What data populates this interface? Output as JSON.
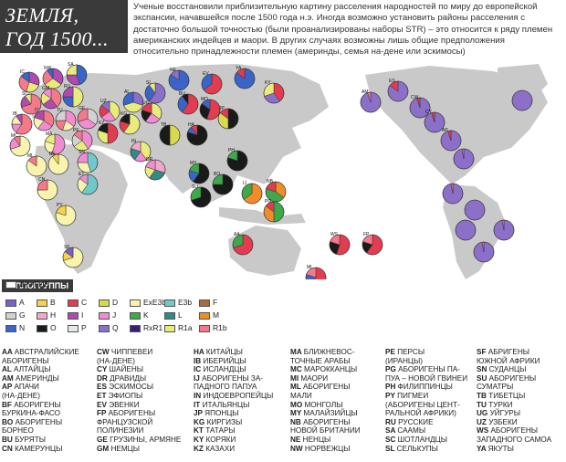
{
  "title": {
    "line1": "ЗЕМЛЯ,",
    "line2": "ГОД 1500..."
  },
  "intro": "Ученые восстановили приблизительную картину расселения народностей по миру до европейской экспансии, начавшейся после 1500 года н.э. Иногда возможно установить районы расселения с достаточно большой точностью (были проанализированы наборы STR) – это относится к ряду племен американских индейцев и маори. В других случаях возможны лишь общие предположения относительно принадлежности племен (америнды, семья на-дене или эскимосы)",
  "colors": {
    "land": "#c9c9c9",
    "ocean": "#ffffff",
    "A": "#7a5fc4",
    "B": "#f6d24a",
    "C": "#e33b4f",
    "D": "#d7d94e",
    "ExE3b": "#f8f4ae",
    "E3b": "#70c8c8",
    "F": "#a86b3a",
    "G": "#d2d2d2",
    "H": "#f0a8c8",
    "I": "#b04ab0",
    "J": "#f18cd2",
    "K": "#3fa848",
    "L": "#2f8a8a",
    "N": "#3a64c8",
    "O": "#1a1a1a",
    "P": "#e8e8e8",
    "Q": "#8b6fc8",
    "RxR1": "#3a1f7a",
    "M": "#f08c2a",
    "R1a": "#e8ec7a",
    "R1b": "#f47a8a",
    "other": "#ffffff"
  },
  "legend": {
    "title": "ГАПЛОГРУППЫ",
    "items": [
      {
        "code": "A",
        "color": "#7a5fc4"
      },
      {
        "code": "B",
        "color": "#f6d24a"
      },
      {
        "code": "C",
        "color": "#e33b4f"
      },
      {
        "code": "D",
        "color": "#d7d94e"
      },
      {
        "code": "ExE3b",
        "color": "#f8f4ae"
      },
      {
        "code": "E3b",
        "color": "#70c8c8"
      },
      {
        "code": "F",
        "color": "#a86b3a"
      },
      {
        "code": "G",
        "color": "#d2d2d2"
      },
      {
        "code": "H",
        "color": "#f0a8c8"
      },
      {
        "code": "I",
        "color": "#b04ab0"
      },
      {
        "code": "J",
        "color": "#f18cd2"
      },
      {
        "code": "K",
        "color": "#3fa848"
      },
      {
        "code": "L",
        "color": "#2f8a8a"
      },
      {
        "code": "M",
        "color": "#f08c2a"
      },
      {
        "code": "N",
        "color": "#3a64c8"
      },
      {
        "code": "O",
        "color": "#1a1a1a"
      },
      {
        "code": "P",
        "color": "#e8e8e8"
      },
      {
        "code": "Q",
        "color": "#8b6fc8"
      },
      {
        "code": "RxR1",
        "color": "#3a1f7a"
      },
      {
        "code": "R1a",
        "color": "#e8ec7a"
      },
      {
        "code": "R1b",
        "color": "#f47a8a"
      },
      {
        "code": "ДРУГИЕ",
        "color": "#ffffff"
      }
    ]
  },
  "groups": [
    [
      {
        "code": "AA",
        "name": "АВСТРАЛИЙСКИЕ"
      },
      {
        "code": "",
        "name": "АБОРИГЕНЫ"
      },
      {
        "code": "AL",
        "name": "АЛТАЙЦЫ"
      },
      {
        "code": "AM",
        "name": "АМЕРИНДЫ"
      },
      {
        "code": "AP",
        "name": "АПАЧИ"
      },
      {
        "code": "",
        "name": "(НА-ДЕНЕ)"
      },
      {
        "code": "BF",
        "name": "АБОРИГЕНЫ"
      },
      {
        "code": "",
        "name": "БУРКИНА-ФАСО"
      },
      {
        "code": "BO",
        "name": "АБОРИГЕНЫ"
      },
      {
        "code": "",
        "name": "БОРНЕО"
      },
      {
        "code": "BU",
        "name": "БУРЯТЫ"
      },
      {
        "code": "CN",
        "name": "КАМЕРУНЦЫ"
      }
    ],
    [
      {
        "code": "CW",
        "name": "ЧИППЕВЕИ"
      },
      {
        "code": "",
        "name": "(НА-ДЕНЕ)"
      },
      {
        "code": "CY",
        "name": "ШАЙЕНЫ"
      },
      {
        "code": "DR",
        "name": "ДРАВИДЫ"
      },
      {
        "code": "ES",
        "name": "ЭСКИМОСЫ"
      },
      {
        "code": "ET",
        "name": "ЭФИОПЫ"
      },
      {
        "code": "EV",
        "name": "ЭВЕНКИ"
      },
      {
        "code": "FP",
        "name": "АБОРИГЕНЫ"
      },
      {
        "code": "",
        "name": "ФРАНЦУЗСКОЙ"
      },
      {
        "code": "",
        "name": "ПОЛИНЕЗИИ"
      },
      {
        "code": "GE",
        "name": "ГРУЗИНЫ, АРМЯНЕ"
      },
      {
        "code": "GM",
        "name": "НЕМЦЫ"
      }
    ],
    [
      {
        "code": "HA",
        "name": "КИТАЙЦЫ"
      },
      {
        "code": "IB",
        "name": "ИБЕРИЙЦЫ"
      },
      {
        "code": "IC",
        "name": "ИСЛАНДЦЫ"
      },
      {
        "code": "IJ",
        "name": "АБОРИГЕНЫ ЗА-"
      },
      {
        "code": "",
        "name": "ПАДНОГО ПАПУА"
      },
      {
        "code": "IN",
        "name": "ИНДОЕВРОПЕЙЦЫ"
      },
      {
        "code": "IT",
        "name": "ИТАЛЬЯНЦЫ"
      },
      {
        "code": "JP",
        "name": "ЯПОНЦЫ"
      },
      {
        "code": "KG",
        "name": "КИРГИЗЫ"
      },
      {
        "code": "KT",
        "name": "ТАТАРЫ"
      },
      {
        "code": "KY",
        "name": "КОРЯКИ"
      },
      {
        "code": "KZ",
        "name": "КАЗАХИ"
      }
    ],
    [
      {
        "code": "MA",
        "name": "БЛИЖНЕВОС-"
      },
      {
        "code": "",
        "name": "ТОЧНЫЕ АРАБЫ"
      },
      {
        "code": "MC",
        "name": "МАРОККАНЦЫ"
      },
      {
        "code": "MI",
        "name": "МАОРИ"
      },
      {
        "code": "ML",
        "name": "АБОРИГЕНЫ"
      },
      {
        "code": "",
        "name": "МАЛИ"
      },
      {
        "code": "MO",
        "name": "МОНГОЛЫ"
      },
      {
        "code": "MY",
        "name": "МАЛАЙЗИЙЦЫ"
      },
      {
        "code": "NB",
        "name": "АБОРИГЕНЫ"
      },
      {
        "code": "",
        "name": "НОВОЙ БРИТАНИИ"
      },
      {
        "code": "NE",
        "name": "НЕНЦЫ"
      },
      {
        "code": "NW",
        "name": "НОРВЕЖЦЫ"
      }
    ],
    [
      {
        "code": "PE",
        "name": "ПЕРСЫ"
      },
      {
        "code": "",
        "name": "(ИРАНЦЫ)"
      },
      {
        "code": "PG",
        "name": "АБОРИГЕНЫ ПА-"
      },
      {
        "code": "",
        "name": "ПУА – НОВОЙ ГВИНЕИ"
      },
      {
        "code": "PH",
        "name": "ФИЛИППИНЦЫ"
      },
      {
        "code": "PY",
        "name": "ПИГМЕИ"
      },
      {
        "code": "",
        "name": "(АБОРИГЕНЫ ЦЕНТ-"
      },
      {
        "code": "",
        "name": "РАЛЬНОЙ АФРИКИ)"
      },
      {
        "code": "RU",
        "name": "РУССКИЕ"
      },
      {
        "code": "SA",
        "name": "СААМЫ"
      },
      {
        "code": "SC",
        "name": "ШОТЛАНДЦЫ"
      },
      {
        "code": "SL",
        "name": "СЕЛЬКУПЫ"
      }
    ],
    [
      {
        "code": "SF",
        "name": "АБРИГЕНЫ"
      },
      {
        "code": "",
        "name": "ЮЖНОЙ АФРИКИ"
      },
      {
        "code": "SN",
        "name": "СУДАНЦЫ"
      },
      {
        "code": "SU",
        "name": "АБОРИГЕНЫ"
      },
      {
        "code": "",
        "name": "СУМАТРЫ"
      },
      {
        "code": "TB",
        "name": "ТИБЕТЦЫ"
      },
      {
        "code": "TU",
        "name": "ТУРКИ"
      },
      {
        "code": "UG",
        "name": "УЙГУРЫ"
      },
      {
        "code": "UZ",
        "name": "УЗБЕКИ"
      },
      {
        "code": "WS",
        "name": "АБОРИГЕНЫ"
      },
      {
        "code": "",
        "name": "ЗАПАДНОГО САМОА"
      },
      {
        "code": "YA",
        "name": "ЯКУТЫ"
      }
    ]
  ],
  "pies": [
    {
      "label": "IC",
      "s": [
        [
          "I",
          30
        ],
        [
          "R1a",
          25
        ],
        [
          "R1b",
          30
        ],
        [
          "N",
          15
        ]
      ]
    },
    {
      "label": "NW",
      "s": [
        [
          "I",
          35
        ],
        [
          "R1a",
          30
        ],
        [
          "R1b",
          25
        ],
        [
          "N",
          10
        ]
      ]
    },
    {
      "label": "SA",
      "s": [
        [
          "N",
          45
        ],
        [
          "I",
          30
        ],
        [
          "R1a",
          25
        ]
      ]
    },
    {
      "label": "SC",
      "s": [
        [
          "R1b",
          70
        ],
        [
          "I",
          20
        ],
        [
          "R1a",
          10
        ]
      ]
    },
    {
      "label": "GM",
      "s": [
        [
          "R1b",
          40
        ],
        [
          "I",
          25
        ],
        [
          "R1a",
          20
        ],
        [
          "J",
          15
        ]
      ]
    },
    {
      "label": "RU",
      "s": [
        [
          "R1a",
          50
        ],
        [
          "N",
          25
        ],
        [
          "I",
          25
        ]
      ]
    },
    {
      "label": "IB",
      "s": [
        [
          "R1b",
          60
        ],
        [
          "J",
          15
        ],
        [
          "ExE3b",
          15
        ],
        [
          "I",
          10
        ]
      ]
    },
    {
      "label": "IT",
      "s": [
        [
          "R1b",
          35
        ],
        [
          "J",
          25
        ],
        [
          "ExE3b",
          20
        ],
        [
          "I",
          20
        ]
      ]
    },
    {
      "label": "TU",
      "s": [
        [
          "J",
          35
        ],
        [
          "ExE3b",
          20
        ],
        [
          "R1b",
          20
        ],
        [
          "G",
          25
        ]
      ]
    },
    {
      "label": "GE",
      "s": [
        [
          "G",
          35
        ],
        [
          "J",
          35
        ],
        [
          "R1b",
          30
        ]
      ]
    },
    {
      "label": "MC",
      "s": [
        [
          "ExE3b",
          70
        ],
        [
          "J",
          20
        ],
        [
          "R1b",
          10
        ]
      ]
    },
    {
      "label": "MA",
      "s": [
        [
          "J",
          55
        ],
        [
          "ExE3b",
          25
        ],
        [
          "R1a",
          20
        ]
      ]
    },
    {
      "label": "PE",
      "s": [
        [
          "J",
          40
        ],
        [
          "R1a",
          25
        ],
        [
          "G",
          20
        ],
        [
          "R1b",
          15
        ]
      ]
    },
    {
      "label": "KZ",
      "s": [
        [
          "C",
          50
        ],
        [
          "R1a",
          30
        ],
        [
          "O",
          20
        ]
      ]
    },
    {
      "label": "UZ",
      "s": [
        [
          "R1a",
          40
        ],
        [
          "J",
          25
        ],
        [
          "C",
          20
        ],
        [
          "Q",
          15
        ]
      ]
    },
    {
      "label": "KG",
      "s": [
        [
          "R1a",
          60
        ],
        [
          "C",
          20
        ],
        [
          "O",
          20
        ]
      ]
    },
    {
      "label": "AL",
      "s": [
        [
          "Q",
          30
        ],
        [
          "R1a",
          40
        ],
        [
          "N",
          30
        ]
      ]
    },
    {
      "label": "SL",
      "s": [
        [
          "Q",
          60
        ],
        [
          "N",
          30
        ],
        [
          "R1a",
          10
        ]
      ]
    },
    {
      "label": "NE",
      "s": [
        [
          "N",
          85
        ],
        [
          "Q",
          15
        ]
      ]
    },
    {
      "label": "EV",
      "s": [
        [
          "C",
          65
        ],
        [
          "N",
          35
        ]
      ]
    },
    {
      "label": "YA",
      "s": [
        [
          "N",
          85
        ],
        [
          "C",
          15
        ]
      ]
    },
    {
      "label": "KY",
      "s": [
        [
          "C",
          40
        ],
        [
          "Q",
          30
        ],
        [
          "R1a",
          30
        ]
      ]
    },
    {
      "label": "BU",
      "s": [
        [
          "C",
          60
        ],
        [
          "N",
          30
        ],
        [
          "O",
          10
        ]
      ]
    },
    {
      "label": "MO",
      "s": [
        [
          "C",
          55
        ],
        [
          "O",
          30
        ],
        [
          "N",
          15
        ]
      ]
    },
    {
      "label": "UG",
      "s": [
        [
          "R1a",
          35
        ],
        [
          "J",
          25
        ],
        [
          "O",
          20
        ],
        [
          "C",
          20
        ]
      ]
    },
    {
      "label": "TB",
      "s": [
        [
          "D",
          50
        ],
        [
          "O",
          50
        ]
      ]
    },
    {
      "label": "HA",
      "s": [
        [
          "O",
          80
        ],
        [
          "N",
          10
        ],
        [
          "C",
          10
        ]
      ]
    },
    {
      "label": "JP",
      "s": [
        [
          "O",
          50
        ],
        [
          "D",
          35
        ],
        [
          "C",
          15
        ]
      ]
    },
    {
      "label": "IN",
      "s": [
        [
          "R1a",
          40
        ],
        [
          "J",
          20
        ],
        [
          "L",
          20
        ],
        [
          "H",
          20
        ]
      ]
    },
    {
      "label": "DR",
      "s": [
        [
          "H",
          30
        ],
        [
          "L",
          30
        ],
        [
          "R1a",
          20
        ],
        [
          "J",
          20
        ]
      ]
    },
    {
      "label": "ML",
      "s": [
        [
          "ExE3b",
          85
        ],
        [
          "R1b",
          15
        ]
      ]
    },
    {
      "label": "BF",
      "s": [
        [
          "ExE3b",
          90
        ],
        [
          "B",
          10
        ]
      ]
    },
    {
      "label": "CN",
      "s": [
        [
          "ExE3b",
          75
        ],
        [
          "R1b",
          25
        ]
      ]
    },
    {
      "label": "SN",
      "s": [
        [
          "E3b",
          45
        ],
        [
          "ExE3b",
          30
        ],
        [
          "J",
          25
        ]
      ]
    },
    {
      "label": "ET",
      "s": [
        [
          "E3b",
          60
        ],
        [
          "ExE3b",
          25
        ],
        [
          "J",
          15
        ]
      ]
    },
    {
      "label": "PY",
      "s": [
        [
          "ExE3b",
          80
        ],
        [
          "B",
          20
        ]
      ]
    },
    {
      "label": "SF",
      "s": [
        [
          "ExE3b",
          70
        ],
        [
          "B",
          15
        ],
        [
          "A",
          15
        ]
      ]
    },
    {
      "label": "MY",
      "s": [
        [
          "O",
          60
        ],
        [
          "N",
          20
        ],
        [
          "K",
          20
        ]
      ]
    },
    {
      "label": "SU",
      "s": [
        [
          "O",
          70
        ],
        [
          "K",
          30
        ]
      ]
    },
    {
      "label": "BO",
      "s": [
        [
          "O",
          75
        ],
        [
          "K",
          25
        ]
      ]
    },
    {
      "label": "PH",
      "s": [
        [
          "O",
          80
        ],
        [
          "K",
          20
        ]
      ]
    },
    {
      "label": "IJ",
      "s": [
        [
          "M",
          65
        ],
        [
          "K",
          35
        ]
      ]
    },
    {
      "label": "NB",
      "s": [
        [
          "M",
          35
        ],
        [
          "K",
          45
        ],
        [
          "C",
          20
        ]
      ]
    },
    {
      "label": "PG",
      "s": [
        [
          "K",
          50
        ],
        [
          "M",
          35
        ],
        [
          "C",
          15
        ]
      ]
    },
    {
      "label": "AA",
      "s": [
        [
          "C",
          70
        ],
        [
          "K",
          30
        ]
      ]
    },
    {
      "label": "MI",
      "s": [
        [
          "C",
          60
        ],
        [
          "N",
          20
        ],
        [
          "R1b",
          20
        ]
      ]
    },
    {
      "label": "WS",
      "s": [
        [
          "C",
          55
        ],
        [
          "O",
          25
        ],
        [
          "R1b",
          20
        ]
      ]
    },
    {
      "label": "FP",
      "s": [
        [
          "C",
          60
        ],
        [
          "O",
          20
        ],
        [
          "R1b",
          20
        ]
      ]
    },
    {
      "label": "AM",
      "s": [
        [
          "Q",
          95
        ],
        [
          "R1b",
          5
        ]
      ]
    },
    {
      "label": "ES",
      "s": [
        [
          "Q",
          85
        ],
        [
          "C",
          15
        ]
      ]
    },
    {
      "label": "CW",
      "s": [
        [
          "Q",
          95
        ],
        [
          "C",
          5
        ]
      ]
    },
    {
      "label": "CY",
      "s": [
        [
          "Q",
          95
        ],
        [
          "C",
          5
        ]
      ]
    },
    {
      "label": "AP",
      "s": [
        [
          "Q",
          95
        ],
        [
          "C",
          5
        ]
      ]
    },
    {
      "label": "",
      "s": [
        [
          "Q",
          97
        ],
        [
          "R1b",
          3
        ]
      ]
    },
    {
      "label": "",
      "s": [
        [
          "Q",
          97
        ],
        [
          "R1b",
          3
        ]
      ]
    },
    {
      "label": "",
      "s": [
        [
          "Q",
          100
        ]
      ]
    },
    {
      "label": "",
      "s": [
        [
          "Q",
          97
        ],
        [
          "R1b",
          3
        ]
      ]
    },
    {
      "label": "",
      "s": [
        [
          "Q",
          100
        ]
      ]
    },
    {
      "label": "",
      "s": [
        [
          "Q",
          97
        ],
        [
          "R1b",
          3
        ]
      ]
    },
    {
      "label": "",
      "s": [
        [
          "Q",
          100
        ]
      ]
    }
  ]
}
